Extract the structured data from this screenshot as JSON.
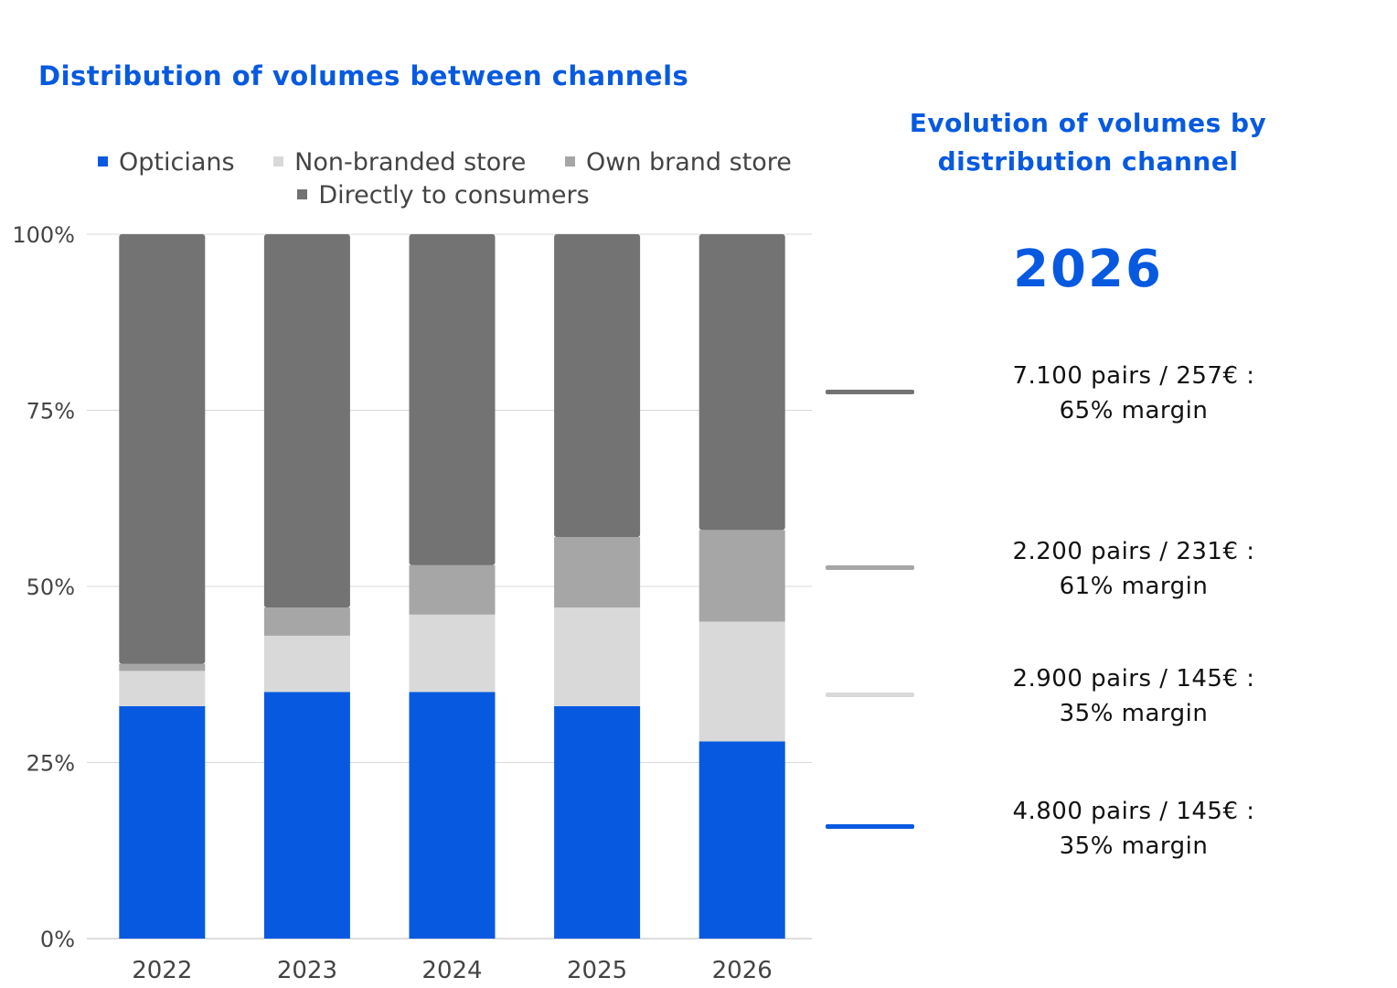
{
  "chart_data": {
    "type": "bar",
    "stacked": true,
    "title": "Distribution of volumes between channels",
    "categories": [
      "2022",
      "2023",
      "2024",
      "2025",
      "2026"
    ],
    "series": [
      {
        "name": "Opticians",
        "color": "#075ae0",
        "values": [
          33,
          35,
          35,
          33,
          28
        ]
      },
      {
        "name": "Non-branded store",
        "color": "#d9d9d9",
        "values": [
          5,
          8,
          11,
          14,
          17
        ]
      },
      {
        "name": "Own brand store",
        "color": "#a6a6a6",
        "values": [
          1,
          4,
          7,
          10,
          13
        ]
      },
      {
        "name": "Directly to consumers",
        "color": "#737373",
        "values": [
          61,
          53,
          47,
          43,
          42
        ]
      }
    ],
    "ylim": [
      0,
      100
    ],
    "yticks": [
      "0%",
      "25%",
      "50%",
      "75%",
      "100%"
    ],
    "ytick_values": [
      0,
      25,
      50,
      75,
      100
    ],
    "grid": true,
    "legend_position": "top",
    "xlabel": "",
    "ylabel": ""
  },
  "side_panel": {
    "title_line1": "Evolution of volumes by",
    "title_line2": "distribution channel",
    "year": "2026",
    "channels": [
      {
        "line1": "7.100 pairs / 257€ :",
        "line2": "65% margin",
        "color": "#737373"
      },
      {
        "line1": "2.200 pairs / 231€ :",
        "line2": "61% margin",
        "color": "#a6a6a6"
      },
      {
        "line1": "2.900 pairs / 145€ :",
        "line2": "35% margin",
        "color": "#d9d9d9"
      },
      {
        "line1": "4.800 pairs / 145€ :",
        "line2": "35% margin",
        "color": "#075ae0"
      }
    ]
  }
}
